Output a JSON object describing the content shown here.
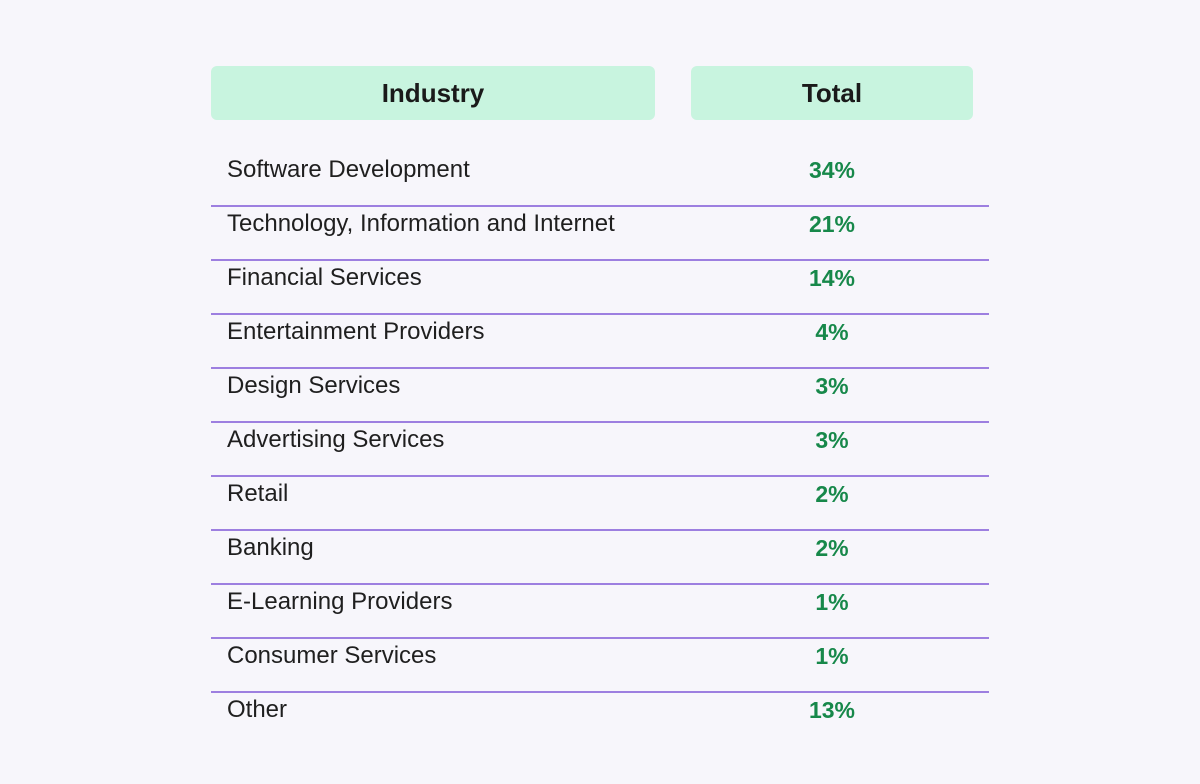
{
  "chart_data": {
    "type": "table",
    "columns": [
      "Industry",
      "Total"
    ],
    "rows": [
      {
        "industry": "Software Development",
        "total": "34%"
      },
      {
        "industry": "Technology, Information and Internet",
        "total": "21%"
      },
      {
        "industry": "Financial Services",
        "total": "14%"
      },
      {
        "industry": "Entertainment Providers",
        "total": "4%"
      },
      {
        "industry": "Design Services",
        "total": "3%"
      },
      {
        "industry": "Advertising Services",
        "total": "3%"
      },
      {
        "industry": "Retail",
        "total": "2%"
      },
      {
        "industry": "Banking",
        "total": "2%"
      },
      {
        "industry": "E-Learning Providers",
        "total": "1%"
      },
      {
        "industry": "Consumer Services",
        "total": "1%"
      },
      {
        "industry": "Other",
        "total": "13%"
      }
    ]
  },
  "colors": {
    "header_bg": "#c8f4df",
    "divider": "#9d7fe0",
    "value_text": "#17884a",
    "page_bg": "#f7f6fb"
  }
}
